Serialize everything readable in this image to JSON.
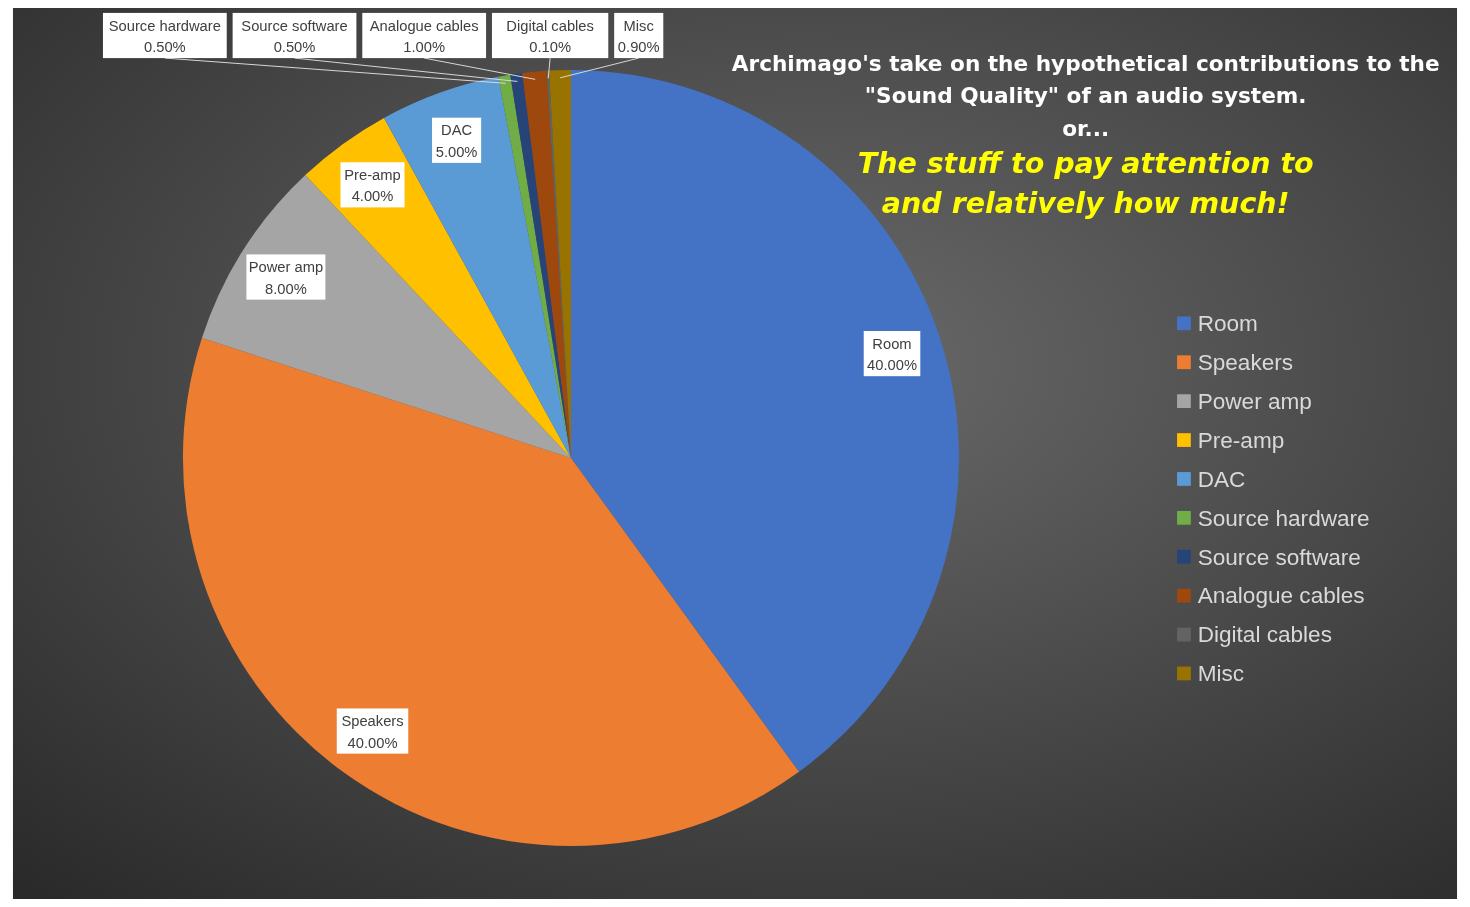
{
  "chart_data": {
    "type": "pie",
    "title": "Archimago's take on the hypothetical contributions to the \"Sound Quality\" of an audio system.",
    "subtitle": "or...",
    "annotations": [
      "The stuff to pay attention to and relatively how much!"
    ],
    "categories": [
      "Room",
      "Speakers",
      "Power amp",
      "Pre-amp",
      "DAC",
      "Source hardware",
      "Source software",
      "Analogue cables",
      "Digital cables",
      "Misc"
    ],
    "values": [
      40,
      40,
      8,
      4,
      5,
      0.5,
      0.5,
      1,
      0.1,
      0.9
    ],
    "value_labels": [
      "40.00%",
      "40.00%",
      "8.00%",
      "4.00%",
      "5.00%",
      "0.50%",
      "0.50%",
      "1.00%",
      "0.10%",
      "0.90%"
    ],
    "colors": [
      "#4472c4",
      "#ed7d31",
      "#a5a5a5",
      "#ffc000",
      "#5b9bd5",
      "#70ad47",
      "#264478",
      "#9e480e",
      "#636363",
      "#997300"
    ],
    "legend": "right"
  }
}
